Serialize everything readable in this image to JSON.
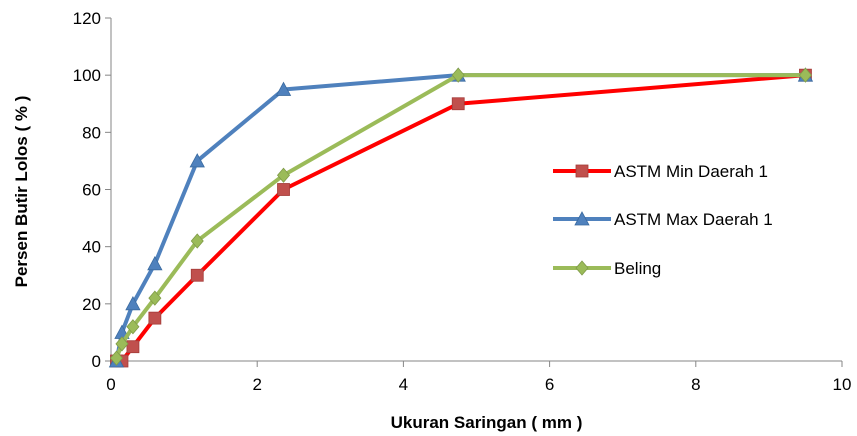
{
  "chart_data": {
    "type": "line",
    "title": "",
    "xlabel": "Ukuran Saringan ( mm )",
    "ylabel": "Persen Butir Lolos ( % )",
    "xlim": [
      0,
      10
    ],
    "ylim": [
      0,
      120
    ],
    "xticks": [
      0,
      2,
      4,
      6,
      8,
      10
    ],
    "yticks": [
      0,
      20,
      40,
      60,
      80,
      100,
      120
    ],
    "grid": false,
    "legend_position": "right",
    "series": [
      {
        "name": "ASTM Min Daerah 1",
        "color": "#ff0000",
        "marker_color": "#c0504d",
        "marker": "square",
        "x": [
          0.075,
          0.15,
          0.3,
          0.6,
          1.18,
          2.36,
          4.75,
          9.5
        ],
        "y": [
          0,
          0,
          5,
          15,
          30,
          60,
          90,
          100
        ]
      },
      {
        "name": "ASTM Max Daerah 1",
        "color": "#4f81bd",
        "marker_color": "#4f81bd",
        "marker": "triangle",
        "x": [
          0.075,
          0.15,
          0.3,
          0.6,
          1.18,
          2.36,
          4.75,
          9.5
        ],
        "y": [
          0,
          10,
          20,
          34,
          70,
          95,
          100,
          100
        ]
      },
      {
        "name": "Beling",
        "color": "#9bbb59",
        "marker_color": "#9bbb59",
        "marker": "diamond",
        "x": [
          0.075,
          0.15,
          0.3,
          0.6,
          1.18,
          2.36,
          4.75,
          9.5
        ],
        "y": [
          1,
          6,
          12,
          22,
          42,
          65,
          100,
          100
        ]
      }
    ]
  }
}
